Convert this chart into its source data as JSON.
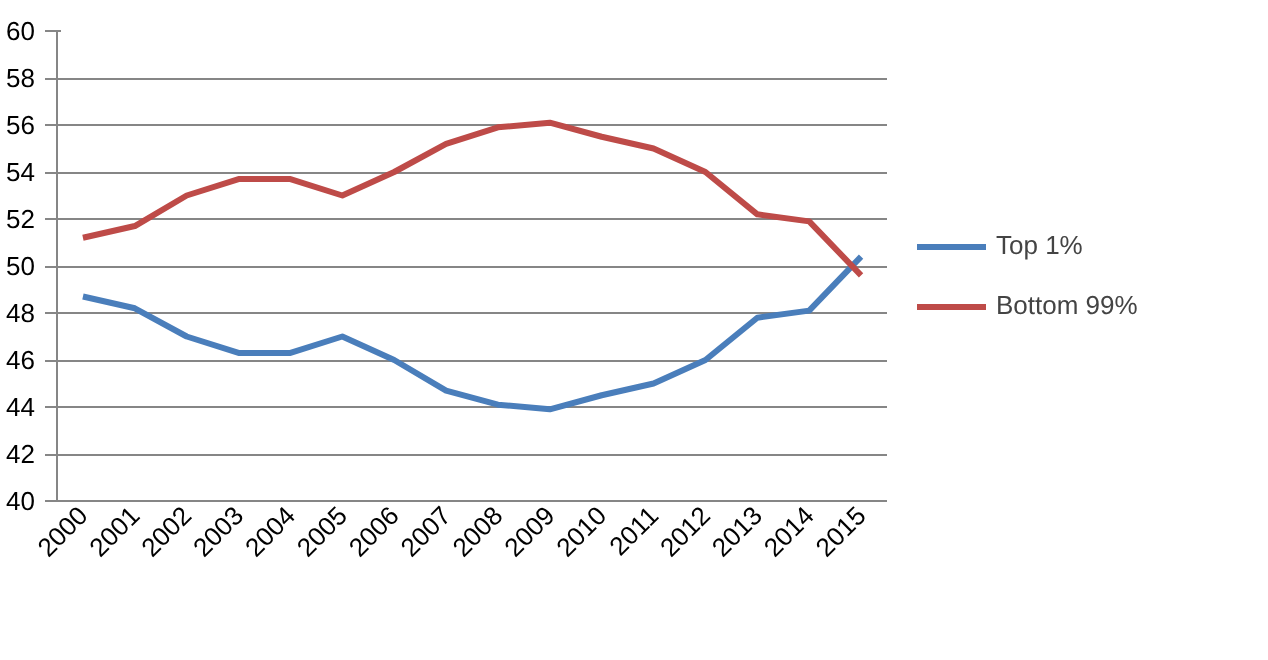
{
  "chart_data": {
    "type": "line",
    "categories": [
      "2000",
      "2001",
      "2002",
      "2003",
      "2004",
      "2005",
      "2006",
      "2007",
      "2008",
      "2009",
      "2010",
      "2011",
      "2012",
      "2013",
      "2014",
      "2015"
    ],
    "series": [
      {
        "name": "Top 1%",
        "color": "#4a7ebb",
        "values": [
          48.7,
          48.2,
          47.0,
          46.3,
          46.3,
          47.0,
          46.0,
          44.7,
          44.1,
          43.9,
          44.5,
          45.0,
          46.0,
          47.8,
          48.1,
          50.4
        ]
      },
      {
        "name": "Bottom 99%",
        "color": "#be4b48",
        "values": [
          51.2,
          51.7,
          53.0,
          53.7,
          53.7,
          53.0,
          54.0,
          55.2,
          55.9,
          56.1,
          55.5,
          55.0,
          54.0,
          52.2,
          51.9,
          49.6
        ]
      }
    ],
    "ylim": [
      40,
      60
    ],
    "yticks": [
      40,
      42,
      44,
      46,
      48,
      50,
      52,
      54,
      56,
      58,
      60
    ],
    "grid": "y",
    "legend": "right",
    "marker": "none",
    "line_style": "solid"
  }
}
